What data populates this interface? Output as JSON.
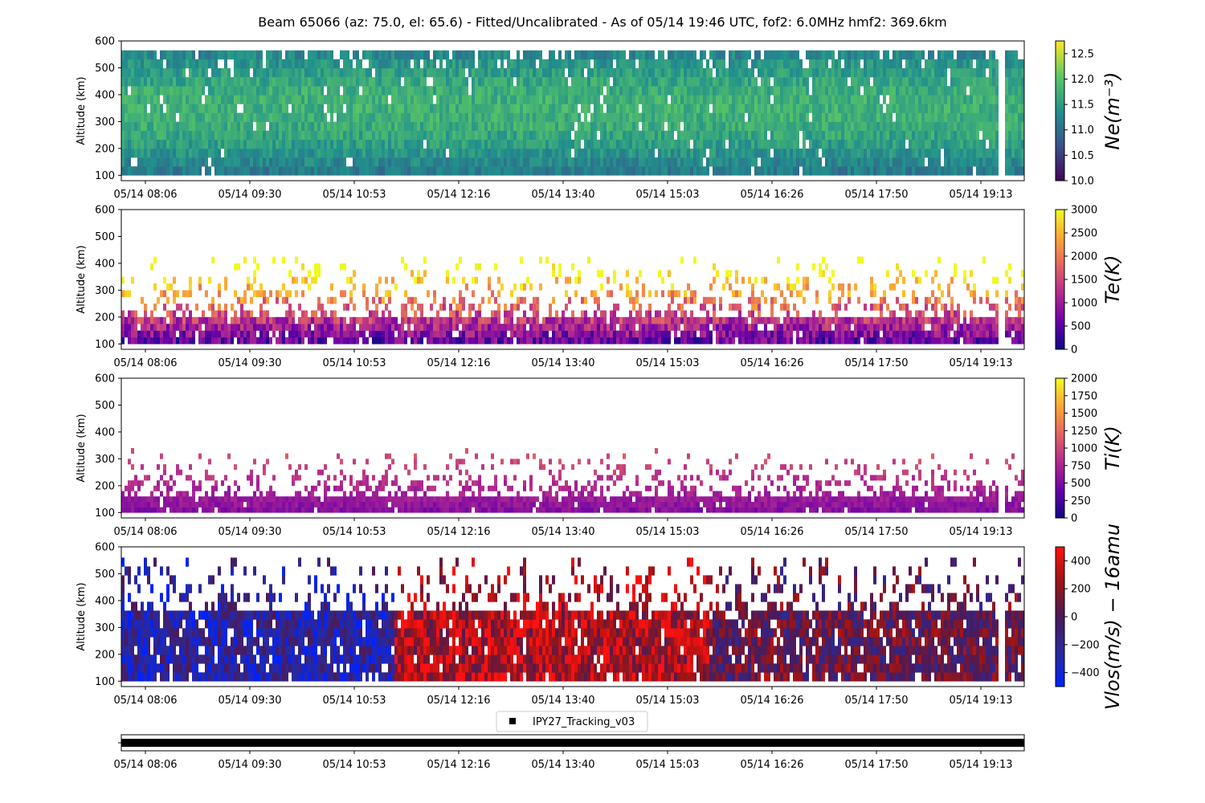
{
  "chart_data": {
    "type": "heatmap",
    "title": "Beam 65066 (az: 75.0, el: 65.6) - Fitted/Uncalibrated - As of 05/14 19:46 UTC, fof2: 6.0MHz  hmf2: 369.6km",
    "x_tick_labels": [
      "05/14 08:06",
      "05/14 09:30",
      "05/14 10:53",
      "05/14 12:16",
      "05/14 13:40",
      "05/14 15:03",
      "05/14 16:26",
      "05/14 17:50",
      "05/14 19:13"
    ],
    "panels": [
      {
        "name": "Ne",
        "ylabel": "Altitude (km)",
        "ylim": [
          80,
          600
        ],
        "y_ticks": [
          100,
          200,
          300,
          400,
          500,
          600
        ],
        "colorbar_label": "Ne(m⁻³)",
        "colorbar_ticks": [
          "10.0",
          "10.5",
          "11.0",
          "11.5",
          "12.0",
          "12.5"
        ],
        "colorbar_range": [
          10.0,
          12.75
        ],
        "colormap": "viridis",
        "altitude_coverage_km": [
          100,
          565
        ],
        "typical_value_range": [
          10.8,
          12.3
        ]
      },
      {
        "name": "Te",
        "ylabel": "Altitude (km)",
        "ylim": [
          80,
          600
        ],
        "y_ticks": [
          100,
          200,
          300,
          400,
          500,
          600
        ],
        "colorbar_label": "Te(K)",
        "colorbar_ticks": [
          "0",
          "500",
          "1000",
          "1500",
          "2000",
          "2500",
          "3000"
        ],
        "colorbar_range": [
          0,
          3000
        ],
        "colormap": "plasma",
        "altitude_coverage_km": [
          100,
          450
        ],
        "typical_value_range": [
          600,
          3000
        ]
      },
      {
        "name": "Ti",
        "ylabel": "Altitude (km)",
        "ylim": [
          80,
          600
        ],
        "y_ticks": [
          100,
          200,
          300,
          400,
          500,
          600
        ],
        "colorbar_label": "Ti(K)",
        "colorbar_ticks": [
          "0",
          "250",
          "500",
          "750",
          "1000",
          "1250",
          "1500",
          "1750",
          "2000"
        ],
        "colorbar_range": [
          0,
          2000
        ],
        "colormap": "plasma",
        "altitude_coverage_km": [
          100,
          380
        ],
        "typical_value_range": [
          400,
          1100
        ]
      },
      {
        "name": "Vlos",
        "ylabel": "Altitude (km)",
        "ylim": [
          80,
          600
        ],
        "y_ticks": [
          100,
          200,
          300,
          400,
          500,
          600
        ],
        "colorbar_label": "Vlos(m/s) − 16amu",
        "colorbar_ticks": [
          "−400",
          "−200",
          "0",
          "200",
          "400"
        ],
        "colorbar_range": [
          -500,
          500
        ],
        "colormap": "blue-red",
        "altitude_coverage_km": [
          100,
          560
        ],
        "typical_value_range": [
          -450,
          450
        ]
      }
    ],
    "legend": {
      "entries": [
        "IPY27_Tracking_v03"
      ],
      "placement": "above-bottom-strip"
    },
    "data_gap": "narrow gap near 05/14 19:30"
  },
  "colors": {
    "ne_map": [
      "#440154",
      "#3b528b",
      "#21908d",
      "#5dc963",
      "#fde725"
    ],
    "plasma_map": [
      "#0d0887",
      "#6a00a8",
      "#b12a90",
      "#e16462",
      "#fca636",
      "#f0f921"
    ],
    "vlos_map": [
      "#0022ff",
      "#2a2a9a",
      "#4a1a5a",
      "#9a1515",
      "#ff1010"
    ]
  }
}
